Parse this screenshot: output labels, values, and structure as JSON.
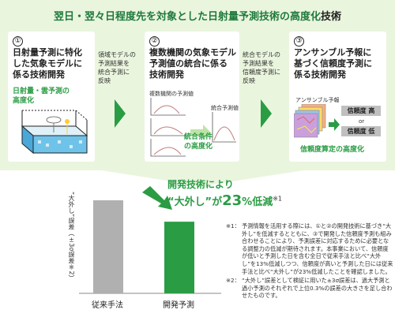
{
  "header": {
    "title_green": "翌日・翌々日程度先を対象とした日射量予測技術の高度化",
    "title_black": "技術"
  },
  "cards": [
    {
      "num": "①",
      "heading": "日射量予測に特化\nした気象モデルに\n係る技術開発",
      "sublabel": "日射量・雲予測の\n高度化"
    },
    {
      "num": "②",
      "heading": "複数機関の気象モデル\n予測値の統合に係る\n技術開発",
      "chart_left_label": "複数機関の予測値",
      "chart_right_label": "統合予測値",
      "sublabel": "統合条件\nの高度化"
    },
    {
      "num": "③",
      "heading": "アンサンブル予報に\n基づく信頼度予測に\n係る技術開発",
      "ensemble_label": "アンサンブル予報",
      "reliability_high": "信頼度 高",
      "or_text": "or",
      "reliability_low": "信頼度 低",
      "sublabel": "信頼度算定の高度化"
    }
  ],
  "flows": [
    "領域モデルの\n予測結果を\n統合予測に\n反映",
    "統合モデルの\n予測結果を\n信頼度予測に\n反映"
  ],
  "result": {
    "heading": "開発技術により",
    "prefix": "“大外し”が",
    "value": "23",
    "unit": "%",
    "suffix": "低減",
    "note_mark": "※1"
  },
  "chart_data": {
    "type": "bar",
    "categories": [
      "従来手法",
      "開発予測"
    ],
    "values": [
      100,
      77
    ],
    "ylabel": "“大外し”誤差（±3σ誤差※2）",
    "colors": [
      "#b0b0b0",
      "#2a9c44"
    ]
  },
  "notes": [
    {
      "mark": "※1：",
      "text": "予測情報を活用する際には、①と②の開発技術に基づき“大外し”を低減するとともに、③で開発した信頼度予測も組み合わせることにより、予測誤差に対応するために必要となる調整力の低減が期待されます。本事業において、信頼度が低いと予測した日を含む全日で従来手法と比べ“大外し”を13%低減しつつ、信頼度が高いと予測した日には従来手法と比べ“大外し”が23%低減したことを確認しました。"
    },
    {
      "mark": "※2：",
      "text": "“大外し”誤差として検証に用いた±3σ誤差は、過大予測と過小予測のそれぞれで上位0.3%の誤差の大きさを足し合わせたものです。"
    }
  ]
}
